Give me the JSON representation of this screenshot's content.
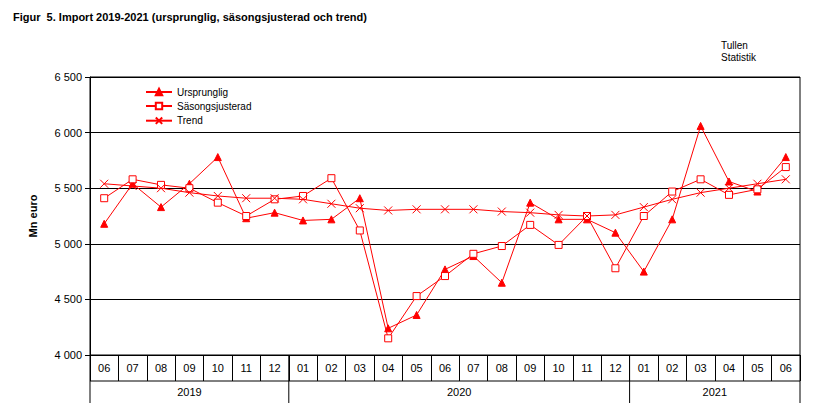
{
  "chart_data": {
    "type": "line",
    "title": "Figur  5. Import 2019-2021 (ursprunglig, säsongsjusterad och trend)",
    "source": [
      "Tullen",
      "Statistik"
    ],
    "y_label": "Mn euro",
    "categories": [
      "06",
      "07",
      "08",
      "09",
      "10",
      "11",
      "12",
      "01",
      "02",
      "03",
      "04",
      "05",
      "06",
      "07",
      "08",
      "09",
      "10",
      "11",
      "12",
      "01",
      "02",
      "03",
      "04",
      "05",
      "06"
    ],
    "year_groups": [
      {
        "label": "2019",
        "months": 7
      },
      {
        "label": "2020",
        "months": 12
      },
      {
        "label": "2021",
        "months": 6
      }
    ],
    "series": [
      {
        "name": "Ursprunglig",
        "color": "#ff0000",
        "marker": "triangle",
        "values": [
          5180,
          5540,
          5330,
          5540,
          5780,
          5230,
          5280,
          5210,
          5220,
          5410,
          4240,
          4360,
          4770,
          4890,
          4650,
          5370,
          5220,
          5220,
          5100,
          4750,
          5220,
          6060,
          5560,
          5470,
          5780
        ]
      },
      {
        "name": "Säsongsjusterad",
        "color": "#ff0000",
        "marker": "square",
        "values": [
          5410,
          5580,
          5530,
          5500,
          5370,
          5250,
          5400,
          5430,
          5590,
          5120,
          4150,
          4530,
          4710,
          4910,
          4980,
          5170,
          4990,
          5250,
          4780,
          5250,
          5470,
          5580,
          5440,
          5490,
          5690
        ]
      },
      {
        "name": "Trend",
        "color": "#ff0000",
        "marker": "x",
        "values": [
          5540,
          5520,
          5500,
          5460,
          5430,
          5410,
          5410,
          5400,
          5360,
          5320,
          5300,
          5310,
          5310,
          5310,
          5290,
          5280,
          5260,
          5250,
          5260,
          5330,
          5400,
          5460,
          5500,
          5540,
          5580
        ]
      }
    ],
    "ylim": [
      4000,
      6500
    ],
    "yticks": [
      {
        "value": 4000,
        "label": "4 000"
      },
      {
        "value": 4500,
        "label": "4 500"
      },
      {
        "value": 5000,
        "label": "5 000"
      },
      {
        "value": 5500,
        "label": "5 500"
      },
      {
        "value": 6000,
        "label": "6 000"
      },
      {
        "value": 6500,
        "label": "6 500"
      }
    ],
    "grid": true,
    "legend": "upper left"
  }
}
